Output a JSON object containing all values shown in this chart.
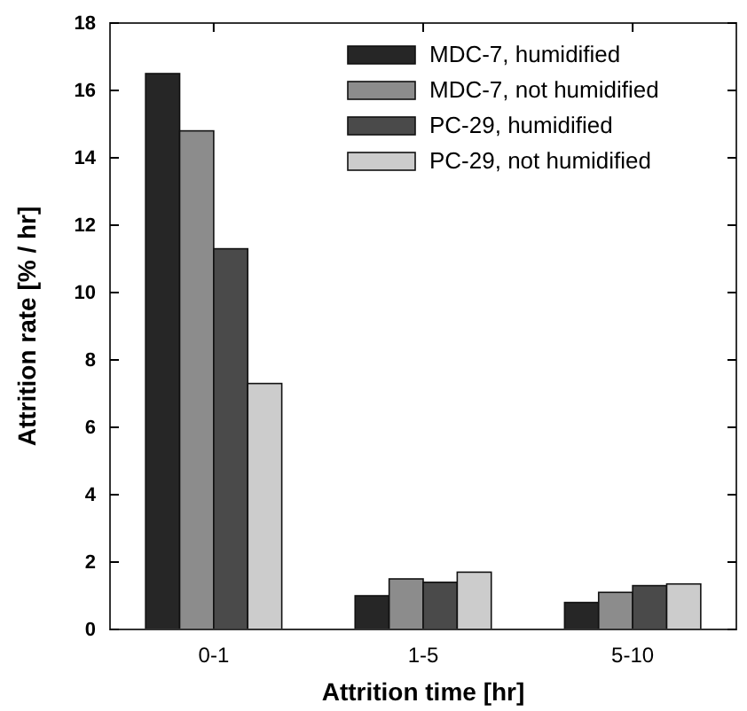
{
  "chart_data": {
    "type": "bar",
    "xlabel": "Attrition time [hr]",
    "ylabel": "Attrition rate [% / hr]",
    "categories": [
      "0-1",
      "1-5",
      "5-10"
    ],
    "series": [
      {
        "name": "MDC-7, humidified",
        "color": "#262626",
        "values": [
          16.5,
          1.0,
          0.8
        ]
      },
      {
        "name": "MDC-7, not humidified",
        "color": "#8c8c8c",
        "values": [
          14.8,
          1.5,
          1.1
        ]
      },
      {
        "name": "PC-29, humidified",
        "color": "#4a4a4a",
        "values": [
          11.3,
          1.4,
          1.3
        ]
      },
      {
        "name": "PC-29, not humidified",
        "color": "#cccccc",
        "values": [
          7.3,
          1.7,
          1.35
        ]
      }
    ],
    "ylim": [
      0,
      18
    ],
    "yticks": [
      0,
      2,
      4,
      6,
      8,
      10,
      12,
      14,
      16,
      18
    ],
    "legend": "top right",
    "grid": false
  }
}
